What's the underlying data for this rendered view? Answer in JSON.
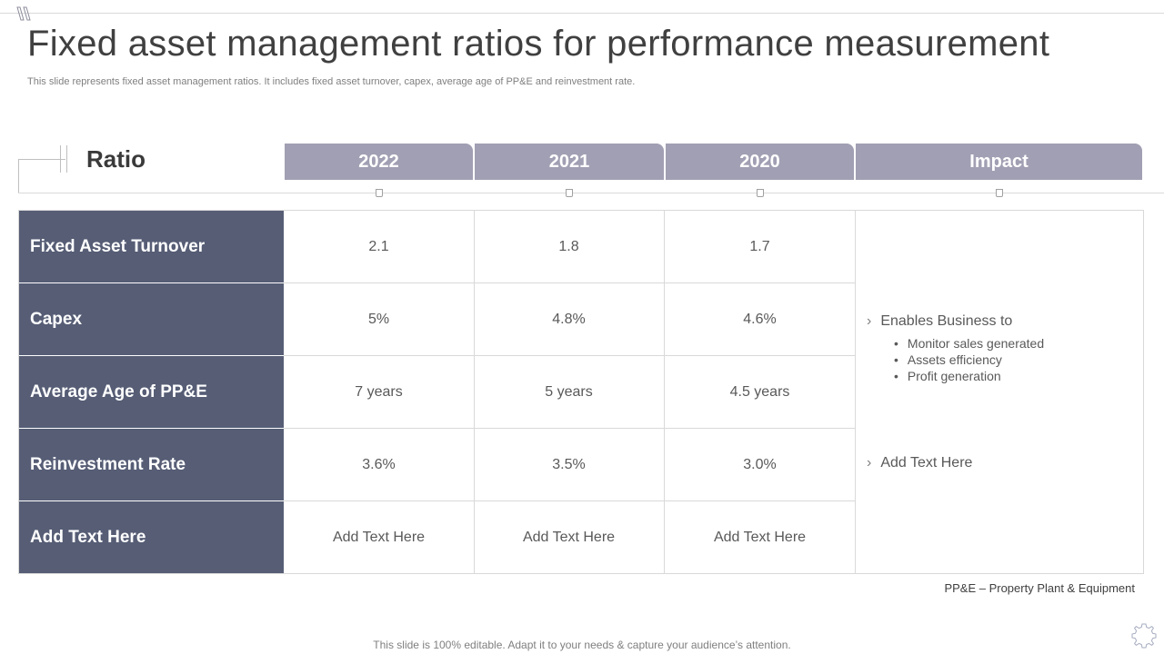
{
  "slide": {
    "title": "Fixed asset management ratios for performance measurement",
    "subtitle": "This slide represents fixed asset management ratios. It includes fixed asset turnover, capex, average age of PP&E and reinvestment rate.",
    "footnote": "PP&E – Property Plant & Equipment",
    "footer": "This slide is 100% editable. Adapt it to your needs & capture your audience’s attention."
  },
  "table": {
    "ratio_header": "Ratio",
    "columns": [
      "2022",
      "2021",
      "2020",
      "Impact"
    ],
    "rows": [
      {
        "label": "Fixed Asset Turnover",
        "values": [
          "2.1",
          "1.8",
          "1.7"
        ]
      },
      {
        "label": "Capex",
        "values": [
          "5%",
          "4.8%",
          "4.6%"
        ]
      },
      {
        "label": "Average Age of PP&E",
        "values": [
          "7 years",
          "5 years",
          "4.5 years"
        ]
      },
      {
        "label": "Reinvestment Rate",
        "values": [
          "3.6%",
          "3.5%",
          "3.0%"
        ]
      },
      {
        "label": "Add Text Here",
        "values": [
          "Add Text Here",
          "Add Text Here",
          "Add Text Here"
        ]
      }
    ]
  },
  "impact": {
    "point1": "Enables Business to",
    "sub_points": [
      "Monitor sales generated",
      "Assets efficiency",
      "Profit generation"
    ],
    "point2": "Add Text Here"
  },
  "colors": {
    "header_fill": "#a19fb3",
    "row_label_fill": "#565d75",
    "grid_line": "#d9d9d9"
  },
  "icons": {
    "corner": "slide-logo-icon",
    "gear": "gear-icon",
    "bullet_chevron": "chevron-right-icon"
  }
}
